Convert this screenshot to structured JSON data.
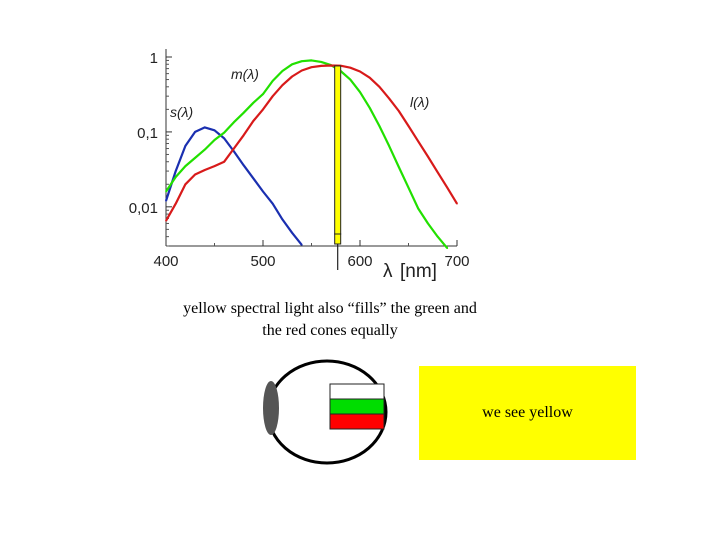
{
  "chart_data": {
    "type": "line",
    "y_scale": "log",
    "xlim": [
      400,
      700
    ],
    "ylim": [
      0.003,
      1
    ],
    "x_ticks": [
      400,
      500,
      600,
      700
    ],
    "x_tick_labels": [
      "400",
      "500",
      "600",
      "700"
    ],
    "y_ticks": [
      1,
      0.1,
      0.01
    ],
    "y_tick_labels": [
      "1",
      "0,1",
      "0,01"
    ],
    "xlabel_symbol": "λ",
    "xlabel_unit": "[nm]",
    "series": [
      {
        "name": "s(λ)",
        "color": "#1a2fb0",
        "x": [
          400,
          410,
          420,
          430,
          440,
          450,
          460,
          470,
          480,
          490,
          500,
          510,
          520,
          530,
          540
        ],
        "y": [
          0.012,
          0.03,
          0.065,
          0.1,
          0.115,
          0.105,
          0.082,
          0.055,
          0.036,
          0.024,
          0.016,
          0.011,
          0.0068,
          0.0045,
          0.0031
        ]
      },
      {
        "name": "m(λ)",
        "color": "#22e000",
        "x": [
          400,
          410,
          420,
          430,
          440,
          450,
          460,
          470,
          480,
          490,
          500,
          510,
          520,
          530,
          540,
          550,
          560,
          570,
          580,
          590,
          600,
          610,
          620,
          630,
          640,
          650,
          660,
          670,
          680,
          690
        ],
        "y": [
          0.016,
          0.025,
          0.035,
          0.045,
          0.058,
          0.078,
          0.098,
          0.135,
          0.18,
          0.245,
          0.32,
          0.48,
          0.65,
          0.8,
          0.88,
          0.9,
          0.86,
          0.78,
          0.65,
          0.5,
          0.34,
          0.21,
          0.12,
          0.065,
          0.034,
          0.018,
          0.0095,
          0.006,
          0.004,
          0.0028
        ]
      },
      {
        "name": "l(λ)",
        "color": "#d81a1a",
        "x": [
          400,
          410,
          420,
          430,
          440,
          450,
          460,
          470,
          480,
          490,
          500,
          510,
          520,
          530,
          540,
          550,
          560,
          570,
          580,
          590,
          600,
          610,
          620,
          630,
          640,
          650,
          660,
          670,
          680,
          690,
          700
        ],
        "y": [
          0.0065,
          0.011,
          0.02,
          0.027,
          0.031,
          0.035,
          0.04,
          0.06,
          0.09,
          0.14,
          0.2,
          0.3,
          0.42,
          0.55,
          0.66,
          0.73,
          0.76,
          0.77,
          0.765,
          0.72,
          0.64,
          0.53,
          0.4,
          0.28,
          0.19,
          0.12,
          0.075,
          0.047,
          0.029,
          0.018,
          0.011
        ]
      }
    ],
    "marker": {
      "x": 577,
      "y": 0.76,
      "color": "#ffff00"
    }
  },
  "caption": "yellow spectral light also “fills” the green and the red cones equally",
  "eye": {
    "outline_color": "#000000",
    "lens_color": "#555555",
    "cone_colors": [
      "#ffffff",
      "#00dd00",
      "#ff0000"
    ]
  },
  "result_panel": {
    "text": "we see yellow",
    "color": "#ffff00"
  }
}
